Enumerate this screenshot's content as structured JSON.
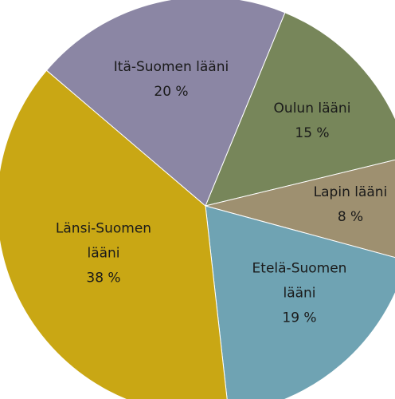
{
  "chart_data": {
    "type": "pie",
    "categories": [
      "Oulun lääni",
      "Lapin lääni",
      "Etelä-Suomen lääni",
      "Länsi-Suomen lääni",
      "Itä-Suomen lääni"
    ],
    "values": [
      15,
      8,
      19,
      38,
      20
    ],
    "value_labels": [
      "15 %",
      "8 %",
      "19 %",
      "38 %",
      "20 %"
    ],
    "colors": [
      "#77865a",
      "#9e9070",
      "#6fa3b3",
      "#c9a714",
      "#8b86a4"
    ]
  }
}
